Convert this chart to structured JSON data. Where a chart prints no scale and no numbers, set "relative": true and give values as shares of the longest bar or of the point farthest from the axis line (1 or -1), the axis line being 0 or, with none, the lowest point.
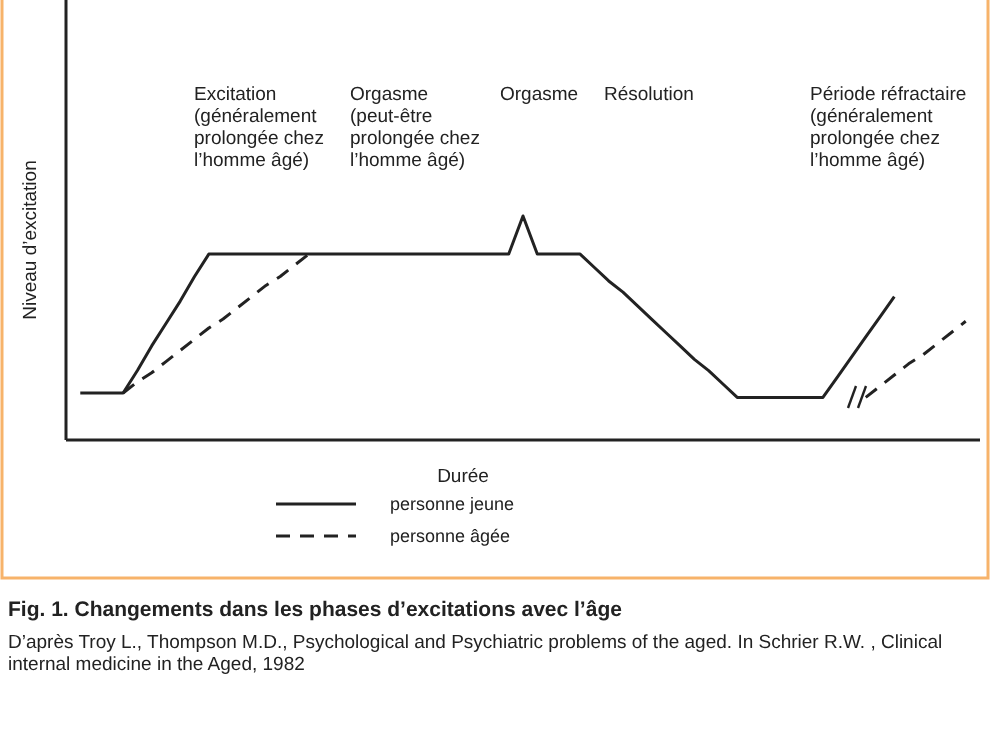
{
  "chart_data": {
    "type": "line",
    "relative": true,
    "title": "Fig. 1. Changements dans les phases d’excitations avec l’âge",
    "xlabel": "Durée",
    "ylabel": "Niveau d’excitation",
    "legend": "bottom",
    "categories": [
      null,
      null,
      null,
      null,
      null,
      null,
      null,
      null,
      null,
      null,
      null,
      null,
      null,
      null,
      null,
      null,
      null,
      null,
      null,
      null,
      null,
      null,
      null,
      null,
      null,
      null,
      null,
      null,
      null,
      null,
      null,
      null,
      null,
      null,
      null,
      null,
      null,
      null,
      null,
      null,
      null,
      null,
      null,
      null,
      null,
      null,
      null,
      null,
      null,
      null,
      null,
      null,
      null,
      null,
      null,
      null,
      null,
      null,
      null,
      null,
      null,
      null,
      null,
      null,
      null
    ],
    "series": [
      {
        "name": "personne jeune",
        "color": "#222222",
        "line_style": "solid",
        "values": [
          null,
          0.21,
          0.21,
          0.21,
          0.21,
          0.31,
          0.42,
          0.52,
          0.62,
          0.73,
          0.83,
          0.83,
          0.83,
          0.83,
          0.83,
          0.83,
          0.83,
          0.83,
          0.83,
          0.83,
          0.83,
          0.83,
          0.83,
          0.83,
          0.83,
          0.83,
          0.83,
          0.83,
          0.83,
          0.83,
          0.83,
          0.83,
          1,
          0.83,
          0.83,
          0.83,
          0.83,
          0.77,
          0.71,
          0.66,
          0.6,
          0.54,
          0.48,
          0.42,
          0.36,
          0.31,
          0.25,
          0.19,
          0.19,
          0.19,
          0.19,
          0.19,
          0.19,
          0.19,
          0.28,
          0.37,
          0.46,
          0.55,
          0.64,
          null,
          null,
          null,
          null,
          null,
          null
        ]
      },
      {
        "name": "personne âgée",
        "color": "#222222",
        "line_style": "dashed",
        "values": [
          null,
          null,
          null,
          null,
          0.21,
          0.26,
          0.3,
          0.35,
          0.4,
          0.45,
          0.5,
          0.54,
          0.59,
          0.64,
          0.69,
          0.73,
          0.78,
          0.83,
          null,
          null,
          null,
          null,
          null,
          null,
          null,
          null,
          null,
          null,
          null,
          null,
          null,
          null,
          null,
          null,
          null,
          null,
          null,
          null,
          null,
          null,
          null,
          null,
          null,
          null,
          null,
          null,
          null,
          null,
          null,
          null,
          null,
          null,
          null,
          null,
          null,
          null,
          0.19,
          0.24,
          0.29,
          0.34,
          0.38,
          0.43,
          0.48,
          0.53,
          null
        ]
      }
    ],
    "annotations": [
      "Excitation (généralement prolongée chez l’homme âgé)",
      "Orgasme (peut-être prolongée chez l’homme âgé)",
      "Orgasme",
      "Résolution",
      "Période réfractaire (généralement prolongée chez l’homme âgé)",
      "D’après Troy L., Thompson M.D., Psychological and Psychiatric problems of the aged. In Schrier R.W. , Clinical internal medicine in the Aged, 1982"
    ]
  }
}
